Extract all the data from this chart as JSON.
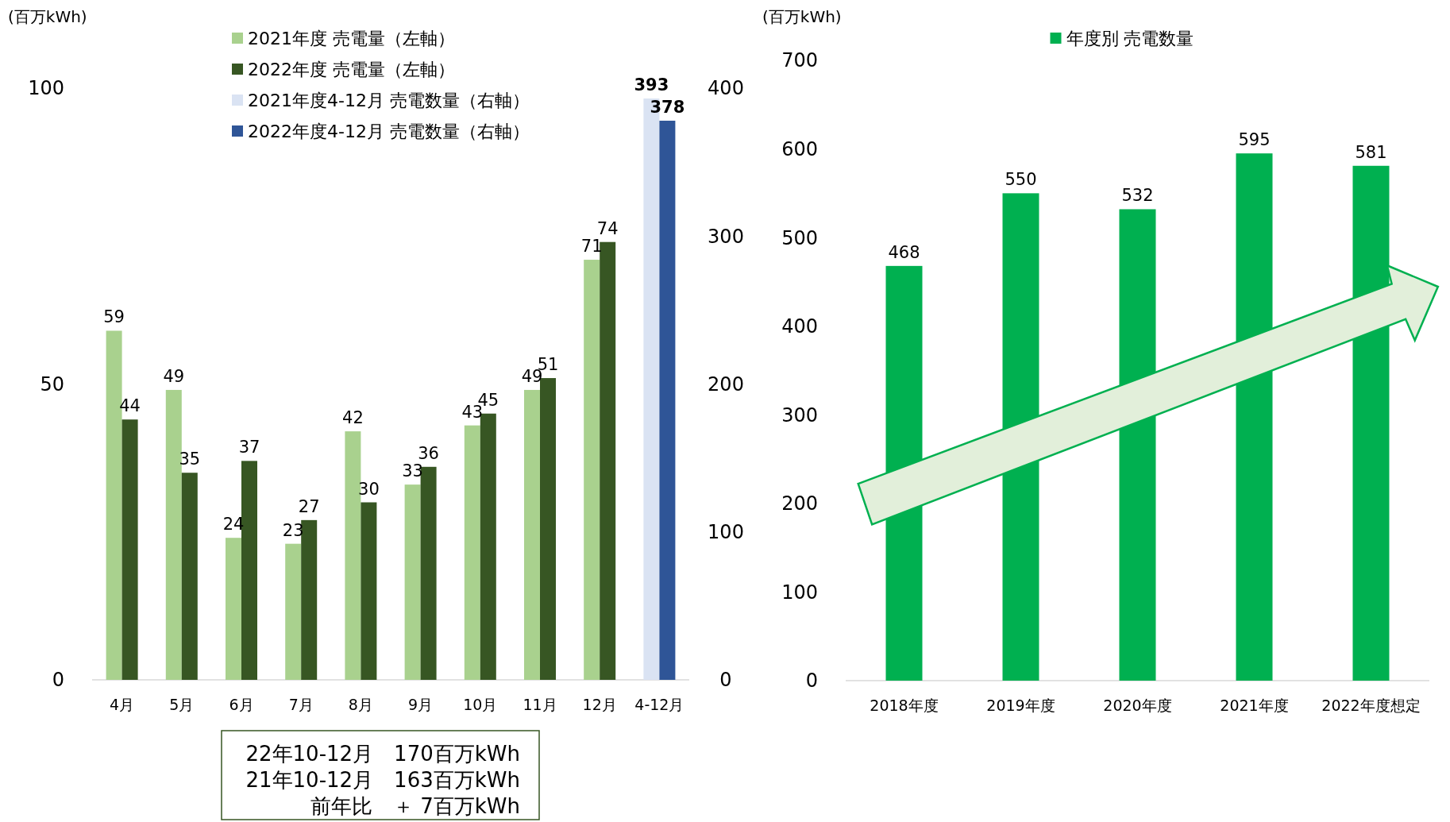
{
  "chart_data": [
    {
      "type": "bar",
      "ylabel": "(百万kWh)",
      "categories": [
        "4月",
        "5月",
        "6月",
        "7月",
        "8月",
        "9月",
        "10月",
        "11月",
        "12月",
        "4-12月"
      ],
      "series": [
        {
          "name": "2021年度 売電量（左軸）",
          "color": "#a9d18e",
          "values": [
            59,
            49,
            24,
            23,
            42,
            33,
            43,
            49,
            71,
            null
          ]
        },
        {
          "name": "2022年度 売電量（左軸）",
          "color": "#375623",
          "values": [
            44,
            35,
            37,
            27,
            30,
            36,
            45,
            51,
            74,
            null
          ]
        },
        {
          "name": "2021年度4-12月 売電数量（右軸）",
          "color": "#dae3f3",
          "axis": "y2",
          "values": [
            null,
            null,
            null,
            null,
            null,
            null,
            null,
            null,
            null,
            393
          ]
        },
        {
          "name": "2022年度4-12月 売電数量（右軸）",
          "color": "#2f5597",
          "axis": "y2",
          "values": [
            null,
            null,
            null,
            null,
            null,
            null,
            null,
            null,
            null,
            378
          ]
        }
      ],
      "ylim": [
        0,
        100
      ],
      "yticks": [
        0,
        50,
        100
      ],
      "y2lim": [
        0,
        400
      ],
      "y2ticks": [
        0,
        100,
        200,
        300,
        400
      ],
      "data_labels": true,
      "legend": "top",
      "annotations": [
        "22年10-12月　170百万kWh",
        "21年10-12月　163百万kWh",
        "前年比　＋ 7百万kWh"
      ]
    },
    {
      "type": "bar",
      "ylabel": "(百万kWh)",
      "categories": [
        "2018年度",
        "2019年度",
        "2020年度",
        "2021年度",
        "2022年度想定"
      ],
      "series": [
        {
          "name": "年度別 売電数量",
          "color": "#00b050",
          "values": [
            468,
            550,
            532,
            595,
            581
          ]
        }
      ],
      "ylim": [
        0,
        700
      ],
      "yticks": [
        0,
        100,
        200,
        300,
        400,
        500,
        600,
        700
      ],
      "data_labels": true,
      "legend": "top"
    }
  ]
}
